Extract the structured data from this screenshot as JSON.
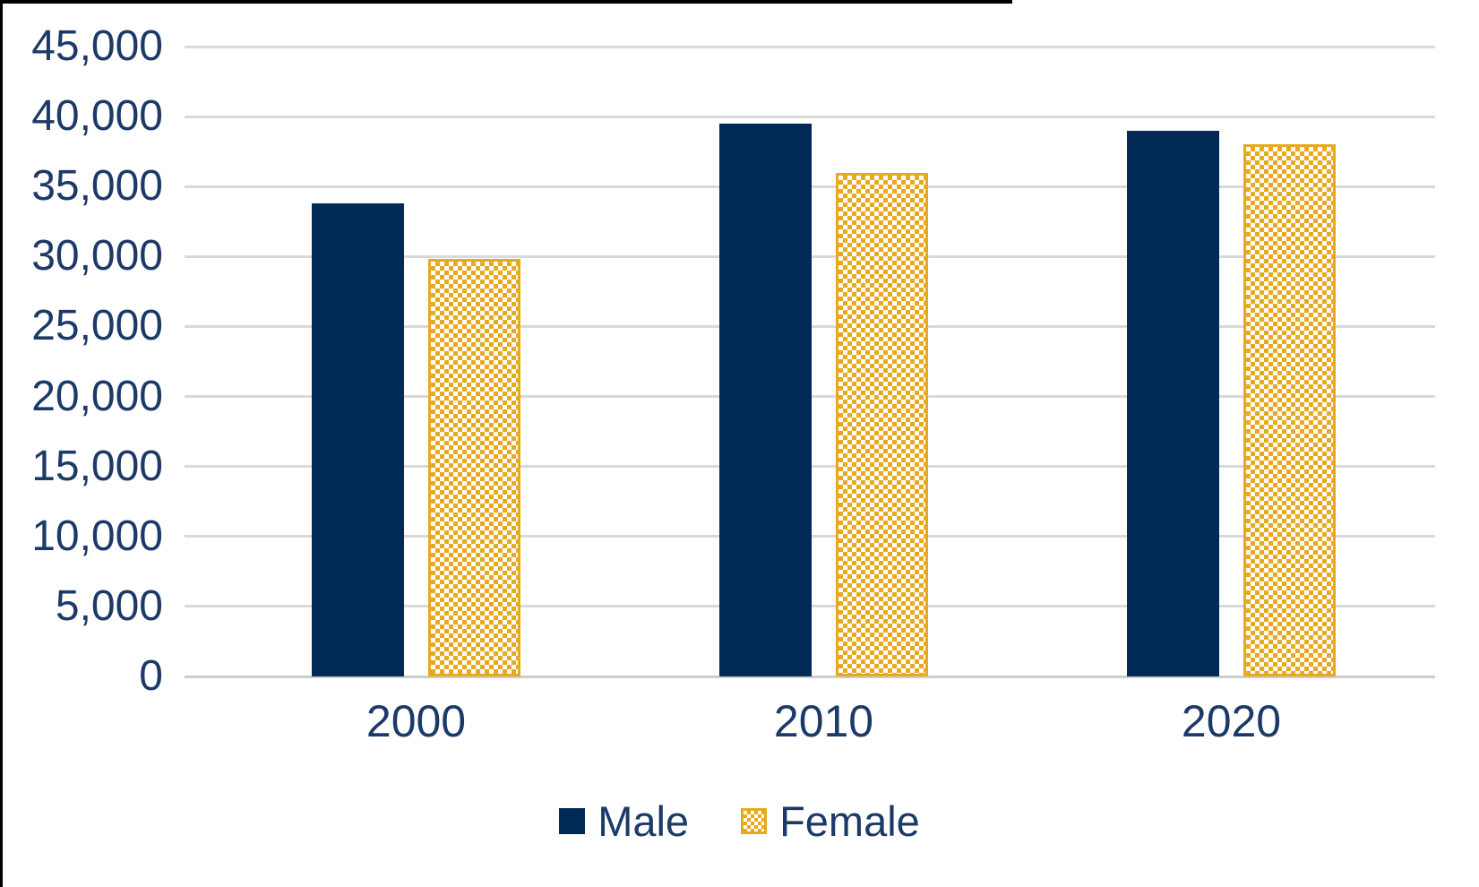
{
  "chart_data": {
    "type": "bar",
    "categories": [
      "2000",
      "2010",
      "2020"
    ],
    "series": [
      {
        "name": "Male",
        "values": [
          33800,
          39500,
          39000
        ]
      },
      {
        "name": "Female",
        "values": [
          29800,
          36000,
          38000
        ]
      }
    ],
    "title": "",
    "xlabel": "",
    "ylabel": "",
    "ylim": [
      0,
      45000
    ],
    "ytick_interval": 5000,
    "ytick_labels": [
      "0",
      "5,000",
      "10,000",
      "15,000",
      "20,000",
      "25,000",
      "30,000",
      "35,000",
      "40,000",
      "45,000"
    ],
    "grid": true,
    "legend_position": "bottom"
  },
  "colors": {
    "male_bar": "#002A55",
    "female_pattern": "#E9A91F",
    "axis_text": "#1C3A68",
    "gridline": "#D9D9D9"
  }
}
